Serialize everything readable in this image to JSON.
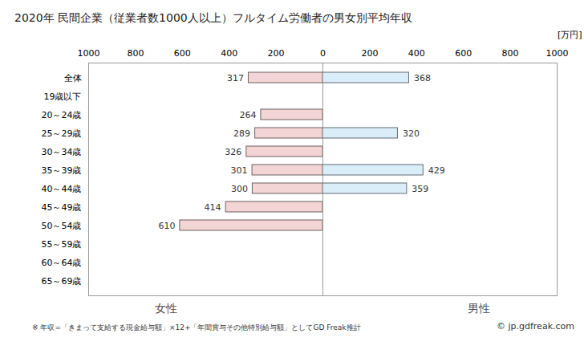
{
  "chart_data": {
    "type": "bar",
    "orientation": "horizontal",
    "title": "2020年 民間企業（従業者数1000人以上）フルタイム労働者の男女別平均年収",
    "x_label": "[万円]",
    "categories": [
      "全体",
      "19歳以下",
      "20～24歳",
      "25～29歳",
      "30～34歳",
      "35～39歳",
      "40～44歳",
      "45～49歳",
      "50～54歳",
      "55～59歳",
      "60～64歳",
      "65～69歳"
    ],
    "series": [
      {
        "name": "女性",
        "color": "#f2d5d4",
        "values": [
          317,
          null,
          264,
          289,
          326,
          301,
          300,
          414,
          610,
          null,
          null,
          null
        ]
      },
      {
        "name": "男性",
        "color": "#d9eef9",
        "values": [
          368,
          null,
          null,
          320,
          null,
          429,
          359,
          null,
          null,
          null,
          null,
          null
        ]
      }
    ],
    "xlim": [
      0,
      1000
    ],
    "xticks": [
      0,
      200,
      400,
      600,
      800,
      1000
    ],
    "grid": false,
    "data_labels": true,
    "notes": [
      "※ 年収=「きまって支給する現金給与額」×12+「年間賞与その他特別給与額」としてGD Freak推計",
      "© jp.gdfreak.com"
    ]
  }
}
